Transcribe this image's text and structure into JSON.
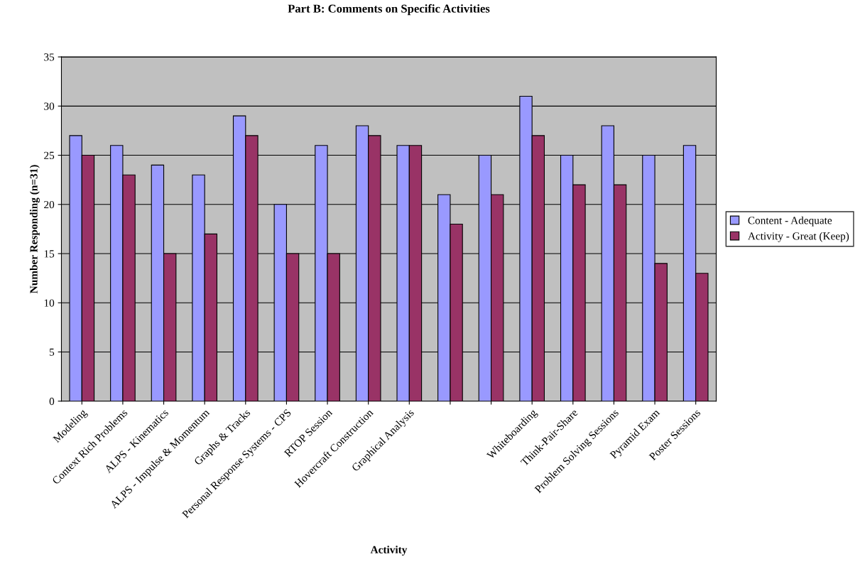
{
  "chart_data": {
    "type": "bar",
    "title": "Part B: Comments on Specific Activities",
    "xlabel": "Activity",
    "ylabel": "Number Responding (n=31)",
    "categories": [
      "Modeling",
      "Context Rich Problems",
      "ALPS - Kinematics",
      "ALPS - Impulse & Momentum",
      "Graphs & Tracks",
      "Personal Response Systems - CPS",
      "RTOP Session",
      "Hovercraft Construction",
      "Graphical Analysis",
      null,
      null,
      "Whiteboarding",
      "Think-Pair-Share",
      "Problem Solving Sessions",
      "Pyramid Exam",
      "Poster Sessions"
    ],
    "series": [
      {
        "name": "Content - Adequate",
        "color": "#9999ff",
        "values": [
          27,
          26,
          24,
          23,
          29,
          20,
          26,
          28,
          26,
          21,
          25,
          31,
          25,
          28,
          25,
          26
        ]
      },
      {
        "name": "Activity - Great (Keep)",
        "color": "#993366",
        "values": [
          25,
          23,
          15,
          17,
          27,
          15,
          15,
          27,
          26,
          18,
          21,
          27,
          22,
          22,
          14,
          13
        ]
      }
    ],
    "ylim": [
      0,
      35
    ],
    "yticks": [
      0,
      5,
      10,
      15,
      20,
      25,
      30,
      35
    ],
    "grid": "y",
    "legend": "right"
  }
}
